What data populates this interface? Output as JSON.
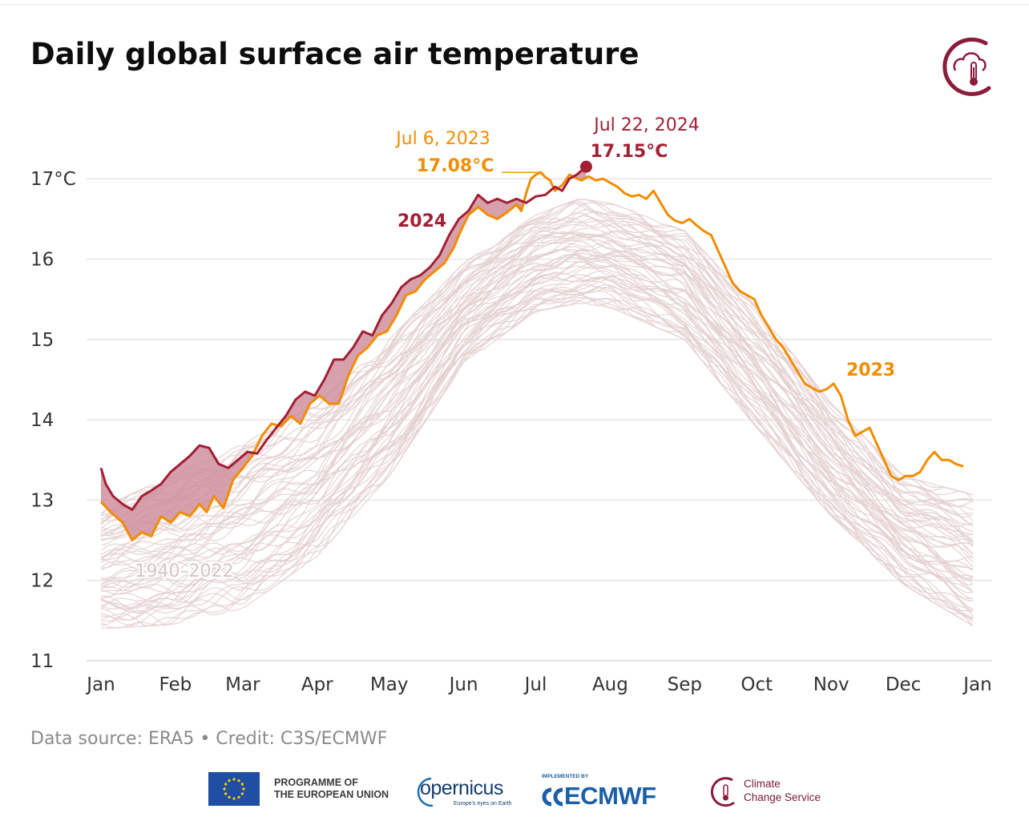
{
  "title": "Daily global surface air temperature",
  "source": "Data source: ERA5 • Credit: C3S/ECMWF",
  "footer": {
    "eu_line1": "PROGRAMME OF",
    "eu_line2": "THE EUROPEAN UNION",
    "copernicus": "opernicus",
    "copernicus_tagline": "Europe's eyes on Earth",
    "ecmwf_small": "IMPLEMENTED BY",
    "ecmwf": "ECMWF",
    "c3s_line1": "Climate",
    "c3s_line2": "Change Service"
  },
  "icons": [
    "climate-change-service-logo-icon",
    "eu-flag-icon",
    "copernicus-logo-icon",
    "ecmwf-logo-icon",
    "c3s-logo-icon"
  ],
  "colors": {
    "series_2023": "#f28c00",
    "series_2024": "#a31f34",
    "fill_2024_above_2023": "#cf8f9f",
    "historical": "#e3d0cf",
    "grid": "#e3e3e3",
    "brand": "#8a1c3c"
  },
  "chart_data": {
    "type": "line",
    "title": "Daily global surface air temperature",
    "xlabel": "",
    "ylabel": "",
    "unit": "°C",
    "x_unit": "day of year",
    "xlim": [
      1,
      366
    ],
    "ylim": [
      11,
      17.3
    ],
    "y_ticks": [
      11,
      12,
      13,
      14,
      15,
      16,
      17
    ],
    "y_tick_labels": [
      "11",
      "12",
      "13",
      "14",
      "15",
      "16",
      "17°C"
    ],
    "x_ticks": [
      1,
      32,
      60,
      91,
      121,
      152,
      182,
      213,
      244,
      274,
      305,
      335,
      366
    ],
    "x_tick_labels": [
      "Jan",
      "Feb",
      "Mar",
      "Apr",
      "May",
      "Jun",
      "Jul",
      "Aug",
      "Sep",
      "Oct",
      "Nov",
      "Dec",
      "Jan"
    ],
    "grid": true,
    "legend": "none",
    "series": [
      {
        "name": "2023",
        "label": "2023",
        "points": [
          [
            1,
            12.98
          ],
          [
            5,
            12.85
          ],
          [
            10,
            12.72
          ],
          [
            14,
            12.5
          ],
          [
            18,
            12.6
          ],
          [
            22,
            12.55
          ],
          [
            26,
            12.8
          ],
          [
            30,
            12.72
          ],
          [
            34,
            12.85
          ],
          [
            38,
            12.8
          ],
          [
            42,
            12.95
          ],
          [
            45,
            12.85
          ],
          [
            48,
            13.05
          ],
          [
            52,
            12.9
          ],
          [
            56,
            13.25
          ],
          [
            60,
            13.4
          ],
          [
            64,
            13.55
          ],
          [
            68,
            13.8
          ],
          [
            72,
            13.95
          ],
          [
            76,
            13.92
          ],
          [
            80,
            14.05
          ],
          [
            84,
            13.95
          ],
          [
            88,
            14.2
          ],
          [
            92,
            14.3
          ],
          [
            96,
            14.2
          ],
          [
            100,
            14.2
          ],
          [
            104,
            14.55
          ],
          [
            108,
            14.8
          ],
          [
            112,
            14.9
          ],
          [
            116,
            15.05
          ],
          [
            120,
            15.1
          ],
          [
            124,
            15.3
          ],
          [
            128,
            15.55
          ],
          [
            132,
            15.6
          ],
          [
            136,
            15.75
          ],
          [
            140,
            15.85
          ],
          [
            144,
            15.95
          ],
          [
            148,
            16.15
          ],
          [
            150,
            16.3
          ],
          [
            154,
            16.55
          ],
          [
            158,
            16.65
          ],
          [
            162,
            16.55
          ],
          [
            166,
            16.5
          ],
          [
            170,
            16.58
          ],
          [
            174,
            16.68
          ],
          [
            176,
            16.6
          ],
          [
            178,
            16.82
          ],
          [
            180,
            17.0
          ],
          [
            182,
            17.05
          ],
          [
            184,
            17.08
          ],
          [
            186,
            17.02
          ],
          [
            188,
            16.98
          ],
          [
            190,
            16.85
          ],
          [
            193,
            16.92
          ],
          [
            196,
            17.05
          ],
          [
            198,
            17.02
          ],
          [
            201,
            16.98
          ],
          [
            204,
            17.03
          ],
          [
            207,
            16.98
          ],
          [
            210,
            17.0
          ],
          [
            213,
            16.95
          ],
          [
            216,
            16.9
          ],
          [
            219,
            16.82
          ],
          [
            222,
            16.78
          ],
          [
            225,
            16.8
          ],
          [
            228,
            16.75
          ],
          [
            231,
            16.85
          ],
          [
            234,
            16.7
          ],
          [
            237,
            16.55
          ],
          [
            240,
            16.48
          ],
          [
            243,
            16.45
          ],
          [
            246,
            16.5
          ],
          [
            249,
            16.42
          ],
          [
            252,
            16.35
          ],
          [
            255,
            16.3
          ],
          [
            258,
            16.1
          ],
          [
            261,
            15.9
          ],
          [
            264,
            15.7
          ],
          [
            267,
            15.6
          ],
          [
            270,
            15.55
          ],
          [
            273,
            15.5
          ],
          [
            276,
            15.3
          ],
          [
            279,
            15.15
          ],
          [
            282,
            15.0
          ],
          [
            285,
            14.9
          ],
          [
            288,
            14.75
          ],
          [
            291,
            14.6
          ],
          [
            294,
            14.45
          ],
          [
            297,
            14.4
          ],
          [
            300,
            14.35
          ],
          [
            303,
            14.38
          ],
          [
            306,
            14.45
          ],
          [
            309,
            14.3
          ],
          [
            312,
            14.0
          ],
          [
            315,
            13.8
          ],
          [
            318,
            13.85
          ],
          [
            321,
            13.9
          ],
          [
            324,
            13.7
          ],
          [
            327,
            13.5
          ],
          [
            330,
            13.3
          ],
          [
            333,
            13.25
          ],
          [
            336,
            13.3
          ],
          [
            339,
            13.3
          ],
          [
            342,
            13.35
          ],
          [
            345,
            13.5
          ],
          [
            348,
            13.6
          ],
          [
            351,
            13.5
          ],
          [
            354,
            13.5
          ],
          [
            357,
            13.45
          ],
          [
            360,
            13.42
          ]
        ]
      },
      {
        "name": "2024",
        "label": "2024",
        "points": [
          [
            1,
            13.4
          ],
          [
            3,
            13.2
          ],
          [
            6,
            13.05
          ],
          [
            10,
            12.95
          ],
          [
            14,
            12.88
          ],
          [
            18,
            13.05
          ],
          [
            22,
            13.12
          ],
          [
            26,
            13.2
          ],
          [
            30,
            13.35
          ],
          [
            34,
            13.45
          ],
          [
            38,
            13.55
          ],
          [
            42,
            13.68
          ],
          [
            46,
            13.65
          ],
          [
            50,
            13.45
          ],
          [
            54,
            13.4
          ],
          [
            58,
            13.5
          ],
          [
            62,
            13.6
          ],
          [
            66,
            13.58
          ],
          [
            70,
            13.75
          ],
          [
            74,
            13.9
          ],
          [
            78,
            14.05
          ],
          [
            82,
            14.25
          ],
          [
            86,
            14.35
          ],
          [
            90,
            14.3
          ],
          [
            94,
            14.5
          ],
          [
            98,
            14.75
          ],
          [
            102,
            14.75
          ],
          [
            106,
            14.9
          ],
          [
            110,
            15.1
          ],
          [
            114,
            15.05
          ],
          [
            118,
            15.3
          ],
          [
            122,
            15.45
          ],
          [
            126,
            15.65
          ],
          [
            130,
            15.75
          ],
          [
            134,
            15.8
          ],
          [
            138,
            15.9
          ],
          [
            142,
            16.05
          ],
          [
            146,
            16.3
          ],
          [
            150,
            16.5
          ],
          [
            154,
            16.6
          ],
          [
            158,
            16.8
          ],
          [
            162,
            16.7
          ],
          [
            166,
            16.75
          ],
          [
            170,
            16.7
          ],
          [
            174,
            16.75
          ],
          [
            178,
            16.7
          ],
          [
            182,
            16.78
          ],
          [
            186,
            16.8
          ],
          [
            190,
            16.9
          ],
          [
            193,
            16.85
          ],
          [
            196,
            17.0
          ],
          [
            199,
            17.05
          ],
          [
            201,
            17.1
          ],
          [
            203,
            17.15
          ]
        ]
      }
    ],
    "historical_band": {
      "name": "1940–2022",
      "label": "1940–2022",
      "upper": [
        [
          1,
          12.9
        ],
        [
          30,
          13.3
        ],
        [
          60,
          13.7
        ],
        [
          91,
          14.2
        ],
        [
          121,
          15.0
        ],
        [
          152,
          15.95
        ],
        [
          182,
          16.55
        ],
        [
          200,
          16.75
        ],
        [
          213,
          16.7
        ],
        [
          244,
          16.35
        ],
        [
          274,
          15.4
        ],
        [
          305,
          14.2
        ],
        [
          335,
          13.3
        ],
        [
          366,
          13.05
        ]
      ],
      "lower": [
        [
          1,
          11.4
        ],
        [
          30,
          11.45
        ],
        [
          60,
          11.65
        ],
        [
          91,
          12.3
        ],
        [
          121,
          13.3
        ],
        [
          152,
          14.7
        ],
        [
          182,
          15.35
        ],
        [
          200,
          15.45
        ],
        [
          213,
          15.4
        ],
        [
          244,
          15.0
        ],
        [
          274,
          13.9
        ],
        [
          305,
          12.8
        ],
        [
          335,
          11.95
        ],
        [
          366,
          11.4
        ]
      ]
    },
    "annotations": [
      {
        "series": "2023",
        "date": "Jul 6, 2023",
        "value_label": "17.08°C",
        "x": 187,
        "y": 17.08
      },
      {
        "series": "2024",
        "date": "Jul 22, 2024",
        "value_label": "17.15°C",
        "x": 203,
        "y": 17.15
      }
    ]
  }
}
